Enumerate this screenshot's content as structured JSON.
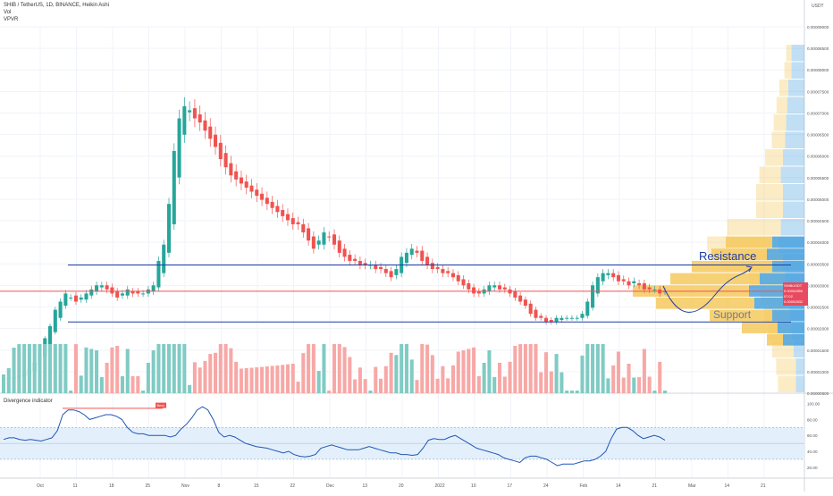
{
  "legend": {
    "symbol": "SHIB / TetherUS, 1D, BINANCE, Heikin Ashi",
    "vol": "Vol",
    "vpvr": "VPVR"
  },
  "currency": "USDT",
  "badge": {
    "symbol": "SHIBUSDT",
    "price": "0.00002856",
    "time": "07:02",
    "ref": "0.00002832"
  },
  "divergence_title": "Divergence indicator",
  "annotations": {
    "resistance": "Resistance",
    "support": "Support",
    "bear": "Bear"
  },
  "colors": {
    "up": "#26a69a",
    "down": "#ef5350",
    "vol_up": "#80cbc4",
    "vol_down": "#f7a8a6",
    "resistance_line": "#1f3ca6",
    "support_line": "#1f3ca6",
    "price_line": "#ef5350",
    "vpvr_up": "#f4c95d",
    "vpvr_down": "#4aa3df",
    "osc_line": "#1f55b5",
    "osc_band": "#e3f0fb"
  },
  "chart_data": [
    {
      "type": "candlestick",
      "title": "SHIB / TetherUS, 1D, BINANCE, Heikin Ashi",
      "y_ticks": [
        "0.00009000",
        "0.00008500",
        "0.00008000",
        "0.00007500",
        "0.00007000",
        "0.00006500",
        "0.00006000",
        "0.00005500",
        "0.00005000",
        "0.00004500",
        "0.00004000",
        "0.00003500",
        "0.00003000",
        "0.00002500",
        "0.00002000",
        "0.00001500",
        "0.00001000",
        "0.00000500"
      ],
      "x_ticks": [
        "Oct",
        "11",
        "18",
        "25",
        "Nov",
        "8",
        "15",
        "22",
        "Dec",
        "13",
        "20",
        "2022",
        "10",
        "17",
        "24",
        "Feb",
        "14",
        "21",
        "Mar",
        "14",
        "21"
      ],
      "ylim": [
        3.5e-06,
        9.35e-05
      ],
      "resistance_level": 3.5e-05,
      "support_level": 2.1e-05,
      "current_price": 2.856e-05,
      "close_series": [
        7e-06,
        7.2e-06,
        7.5e-06,
        7.8e-06,
        8.5e-06,
        9.5e-06,
        1.1e-05,
        1.4e-05,
        1.7e-05,
        2e-05,
        2.4e-05,
        2.6e-05,
        2.8e-05,
        2.7e-05,
        2.6e-05,
        2.7e-05,
        2.8e-05,
        2.9e-05,
        3e-05,
        3e-05,
        2.9e-05,
        2.8e-05,
        2.7e-05,
        2.8e-05,
        2.9e-05,
        2.8e-05,
        2.8e-05,
        2.8e-05,
        2.9e-05,
        3e-05,
        3.6e-05,
        4e-05,
        5e-05,
        6.3e-05,
        7.1e-05,
        7.4e-05,
        7.3e-05,
        7.1e-05,
        7e-05,
        6.8e-05,
        6.6e-05,
        6.4e-05,
        6.1e-05,
        5.9e-05,
        5.7e-05,
        5.6e-05,
        5.5e-05,
        5.4e-05,
        5.3e-05,
        5.2e-05,
        5.1e-05,
        5e-05,
        4.9e-05,
        4.8e-05,
        4.7e-05,
        4.6e-05,
        4.5e-05,
        4.5e-05,
        4.3e-05,
        4.1e-05,
        3.9e-05,
        4.1e-05,
        4.3e-05,
        4.2e-05,
        4e-05,
        3.8e-05,
        3.7e-05,
        3.6e-05,
        3.6e-05,
        3.5e-05,
        3.5e-05,
        3.5e-05,
        3.4e-05,
        3.4e-05,
        3.3e-05,
        3.2e-05,
        3.4e-05,
        3.7e-05,
        3.8e-05,
        3.9e-05,
        3.8e-05,
        3.6e-05,
        3.5e-05,
        3.4e-05,
        3.4e-05,
        3.3e-05,
        3.3e-05,
        3.2e-05,
        3.1e-05,
        3e-05,
        2.9e-05,
        2.8e-05,
        2.8e-05,
        2.9e-05,
        3e-05,
        3e-05,
        2.9e-05,
        2.9e-05,
        2.8e-05,
        2.7e-05,
        2.6e-05,
        2.5e-05,
        2.3e-05,
        2.2e-05,
        2.2e-05,
        2.1e-05,
        2.1e-05,
        2.2e-05,
        2.2e-05,
        2.2e-05,
        2.2e-05,
        2.2e-05,
        2.3e-05,
        2.6e-05,
        3e-05,
        3.2e-05,
        3.3e-05,
        3.3e-05,
        3.2e-05,
        3.1e-05,
        3.1e-05,
        3e-05,
        3.1e-05,
        3e-05,
        2.9e-05,
        2.9e-05,
        2.9e-05,
        2.8e-05,
        2.85e-05
      ]
    },
    {
      "type": "line",
      "title": "Divergence indicator",
      "y_ticks": [
        "100.00",
        "80.00",
        "60.00",
        "40.00",
        "20.00"
      ],
      "ylim": [
        12,
        104
      ],
      "bands": [
        30,
        70
      ],
      "values": [
        55,
        57,
        57,
        55,
        54,
        55,
        54,
        53,
        55,
        57,
        66,
        86,
        92,
        92,
        90,
        86,
        80,
        82,
        84,
        86,
        86,
        84,
        80,
        70,
        64,
        62,
        62,
        60,
        60,
        60,
        60,
        58,
        60,
        68,
        74,
        82,
        92,
        96,
        92,
        80,
        64,
        58,
        60,
        58,
        54,
        50,
        48,
        46,
        45,
        44,
        42,
        40,
        38,
        40,
        36,
        34,
        33,
        34,
        36,
        44,
        46,
        48,
        46,
        44,
        42,
        42,
        42,
        44,
        46,
        44,
        42,
        40,
        38,
        38,
        36,
        36,
        35,
        36,
        44,
        54,
        56,
        55,
        55,
        58,
        60,
        56,
        52,
        48,
        44,
        42,
        40,
        38,
        36,
        32,
        30,
        28,
        26,
        32,
        34,
        34,
        32,
        30,
        26,
        22,
        24,
        24,
        24,
        26,
        28,
        28,
        30,
        34,
        40,
        56,
        68,
        70,
        70,
        66,
        60,
        56,
        58,
        60,
        58,
        54
      ]
    }
  ]
}
